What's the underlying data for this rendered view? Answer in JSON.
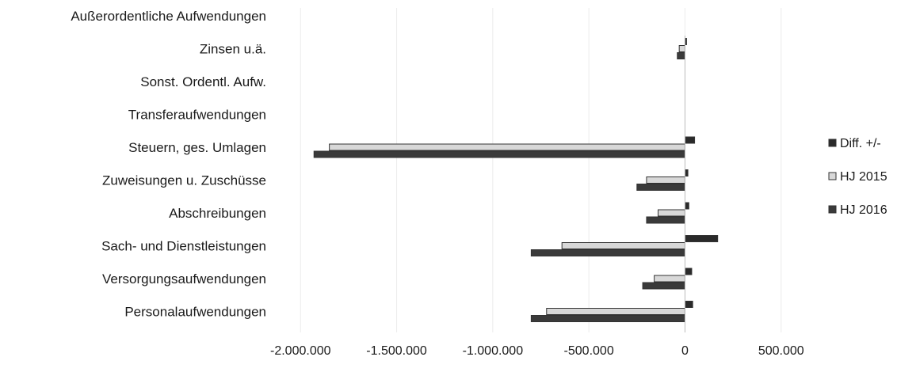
{
  "chart_data": {
    "type": "bar",
    "orientation": "horizontal",
    "categories": [
      "Personalaufwendungen",
      "Versorgungsaufwendungen",
      "Sach- und Dienstleistungen",
      "Abschreibungen",
      "Zuweisungen u. Zuschüsse",
      "Steuern, ges. Umlagen",
      "Transferaufwendungen",
      "Sonst. Ordentl. Aufw.",
      "Zinsen u.ä.",
      "Außerordentliche Aufwendungen"
    ],
    "series": [
      {
        "name": "Diff. +/-",
        "values": [
          40000,
          35000,
          170000,
          20000,
          15000,
          50000,
          0,
          0,
          8000,
          0
        ]
      },
      {
        "name": "HJ 2015",
        "values": [
          -720000,
          -160000,
          -640000,
          -140000,
          -200000,
          -1850000,
          0,
          0,
          -30000,
          0
        ]
      },
      {
        "name": "HJ 2016",
        "values": [
          -800000,
          -220000,
          -800000,
          -200000,
          -250000,
          -1930000,
          0,
          0,
          -40000,
          0
        ]
      }
    ],
    "x_tick_labels": [
      "-2.000.000",
      "-1.500.000",
      "-1.000.000",
      "-500.000",
      "0",
      "500.000"
    ],
    "x_ticks": [
      -2000000,
      -1500000,
      -1000000,
      -500000,
      0,
      500000
    ],
    "xlim": [
      -2100000,
      600000
    ],
    "legend_position": "right",
    "colors": {
      "Diff. +/-": "#2a2a2a",
      "HJ 2015": "#d8d8d8",
      "HJ 2016": "#3a3a3a"
    }
  }
}
